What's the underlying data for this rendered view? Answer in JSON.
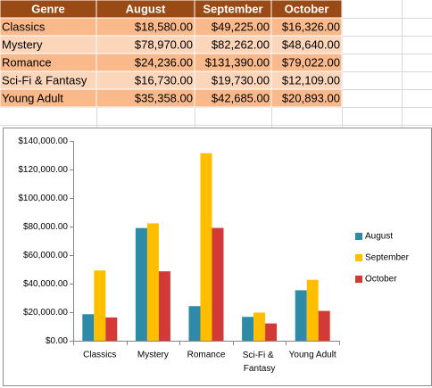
{
  "table": {
    "header": [
      "Genre",
      "August",
      "September",
      "October"
    ],
    "rows": [
      [
        "Classics",
        "$18,580.00",
        "$49,225.00",
        "$16,326.00"
      ],
      [
        "Mystery",
        "$78,970.00",
        "$82,262.00",
        "$48,640.00"
      ],
      [
        "Romance",
        "$24,236.00",
        "$131,390.00",
        "$79,022.00"
      ],
      [
        "Sci-Fi & Fantasy",
        "$16,730.00",
        "$19,730.00",
        "$12,109.00"
      ],
      [
        "Young Adult",
        "$35,358.00",
        "$42,685.00",
        "$20,893.00"
      ]
    ]
  },
  "chart_data": {
    "type": "bar",
    "categories": [
      "Classics",
      "Mystery",
      "Romance",
      "Sci-Fi & Fantasy",
      "Young Adult"
    ],
    "series": [
      {
        "name": "August",
        "color": "#2e8ba8",
        "values": [
          18580,
          78970,
          24236,
          16730,
          35358
        ]
      },
      {
        "name": "September",
        "color": "#ffbf00",
        "values": [
          49225,
          82262,
          131390,
          19730,
          42685
        ]
      },
      {
        "name": "October",
        "color": "#d23a35",
        "values": [
          16326,
          48640,
          79022,
          12109,
          20893
        ]
      }
    ],
    "ylim": [
      0,
      140000
    ],
    "yticks": [
      {
        "value": 0,
        "label": "$0.00"
      },
      {
        "value": 20000,
        "label": "$20,000.00"
      },
      {
        "value": 40000,
        "label": "$40,000.00"
      },
      {
        "value": 60000,
        "label": "$60,000.00"
      },
      {
        "value": 80000,
        "label": "$80,000.00"
      },
      {
        "value": 100000,
        "label": "$100,000.00"
      },
      {
        "value": 120000,
        "label": "$120,000.00"
      },
      {
        "value": 140000,
        "label": "$140,000.00"
      }
    ],
    "grid": false,
    "legend": "right"
  }
}
